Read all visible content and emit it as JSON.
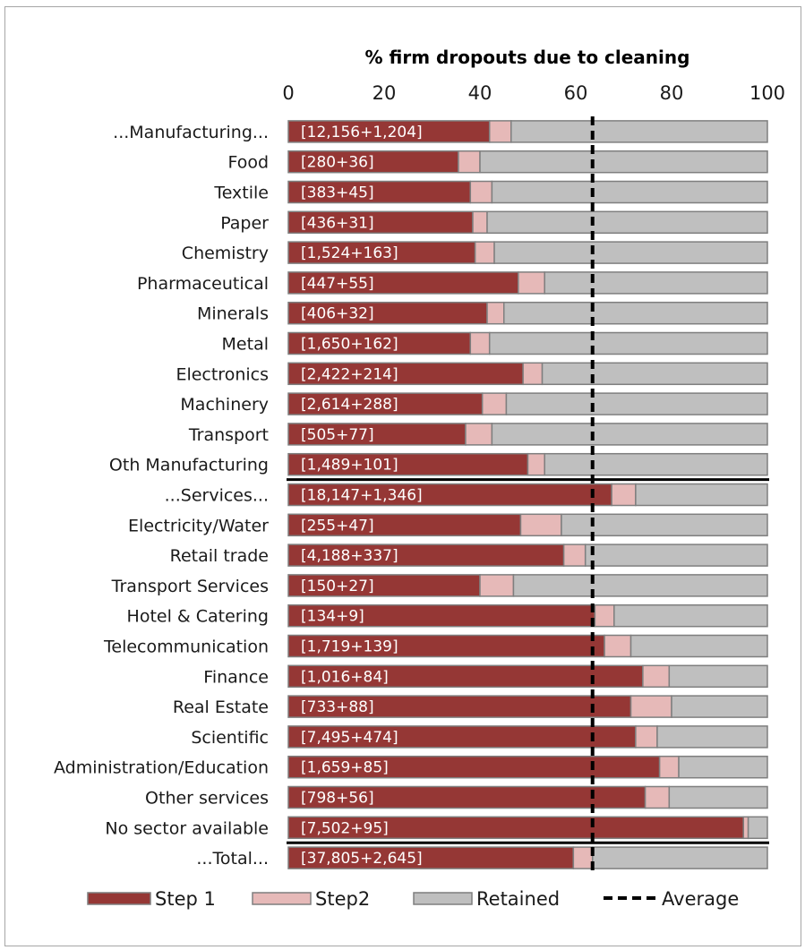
{
  "chart_data": {
    "type": "bar",
    "orientation": "horizontal",
    "stacked": true,
    "title": "% firm dropouts due to cleaning",
    "xlim": [
      0,
      100
    ],
    "x_ticks": [
      "0",
      "20",
      "40",
      "60",
      "80",
      "100"
    ],
    "categories": [
      "...Manufacturing...",
      "Food",
      "Textile",
      "Paper",
      "Chemistry",
      "Pharmaceutical",
      "Minerals",
      "Metal",
      "Electronics",
      "Machinery",
      "Transport",
      "Oth Manufacturing",
      "...Services...",
      "Electricity/Water",
      "Retail trade",
      "Transport Services",
      "Hotel & Catering",
      "Telecommunication",
      "Finance",
      "Real Estate",
      "Scientific",
      "Administration/Education",
      "Other services",
      "No sector available",
      "...Total..."
    ],
    "bar_labels": [
      "[12,156+1,204]",
      "[280+36]",
      "[383+45]",
      "[436+31]",
      "[1,524+163]",
      "[447+55]",
      "[406+32]",
      "[1,650+162]",
      "[2,422+214]",
      "[2,614+288]",
      "[505+77]",
      "[1,489+101]",
      "[18,147+1,346]",
      "[255+47]",
      "[4,188+337]",
      "[150+27]",
      "[134+9]",
      "[1,719+139]",
      "[1,016+84]",
      "[733+88]",
      "[7,495+474]",
      "[1,659+85]",
      "[798+56]",
      "[7,502+95]",
      "[37,805+2,645]"
    ],
    "series": [
      {
        "name": "Step 1",
        "color": "#953735",
        "values": [
          42,
          35.5,
          38,
          38.5,
          39,
          48,
          41.5,
          38,
          49,
          40.5,
          37,
          50,
          67.5,
          48.5,
          57.5,
          40,
          64,
          66,
          74,
          71.5,
          72.5,
          77.5,
          74.5,
          95,
          59.5
        ]
      },
      {
        "name": "Step2",
        "color": "#e6b9b8",
        "values": [
          4.5,
          4.5,
          4.5,
          3,
          4,
          5.5,
          3.5,
          4,
          4,
          5,
          5.5,
          3.5,
          5,
          8.5,
          4.5,
          7,
          4,
          5.5,
          5.5,
          8.5,
          4.5,
          4,
          5,
          1,
          4
        ]
      },
      {
        "name": "Retained",
        "color": "#bfbfbf",
        "values": [
          53.5,
          60,
          57.5,
          58.5,
          57,
          46.5,
          55,
          58,
          47,
          54.5,
          57.5,
          46.5,
          27.5,
          43,
          38,
          53,
          32,
          28.5,
          20.5,
          20,
          23,
          18.5,
          20.5,
          4,
          36.5
        ]
      }
    ],
    "average": {
      "name": "Average",
      "value": 63.5
    },
    "group_separators_after": [
      "Oth Manufacturing",
      "No sector available"
    ],
    "legend_position": "bottom",
    "grid": false
  }
}
